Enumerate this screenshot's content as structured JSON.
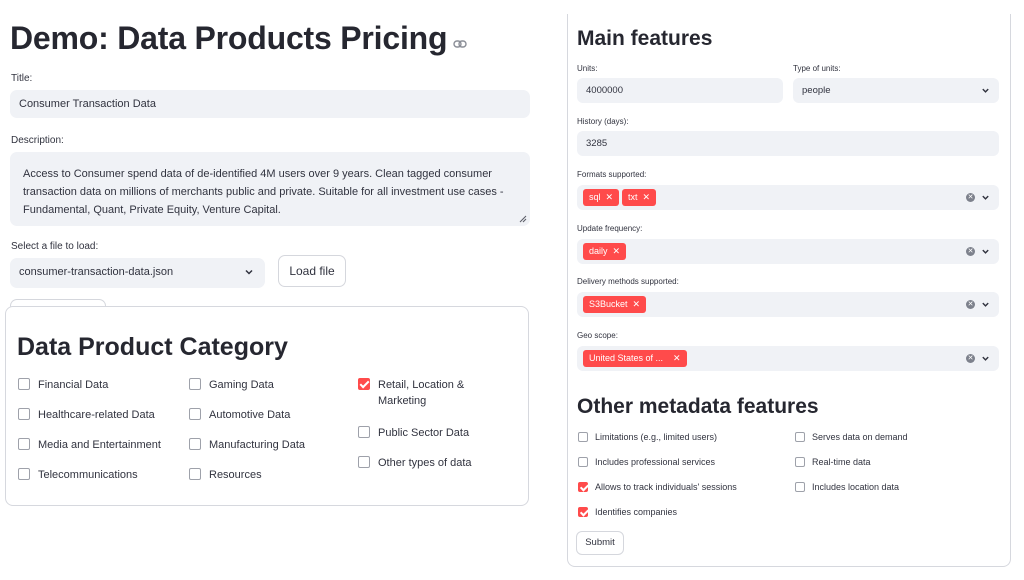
{
  "header": {
    "title": "Demo: Data Products Pricing",
    "link_icon": "link-icon"
  },
  "form": {
    "title_label": "Title:",
    "title_value": "Consumer Transaction Data",
    "description_label": "Description:",
    "description_value": "Access to Consumer spend data of de-identified 4M users over 9 years. Clean tagged consumer transaction data on millions of merchants public and private.  Suitable for all investment use cases - Fundamental, Quant, Private Equity, Venture Capital.",
    "file_label": "Select a file to load:",
    "file_value": "consumer-transaction-data.json",
    "load_button": "Load file"
  },
  "category": {
    "title": "Data Product Category",
    "items": [
      {
        "label": "Financial Data",
        "checked": false
      },
      {
        "label": "Gaming Data",
        "checked": false
      },
      {
        "label": "Retail, Location &",
        "label2": "Marketing",
        "checked": true
      },
      {
        "label": "Healthcare-related Data",
        "checked": false
      },
      {
        "label": "Automotive Data",
        "checked": false
      },
      {
        "label": "Public Sector Data",
        "checked": false
      },
      {
        "label": "Media and Entertainment",
        "checked": false
      },
      {
        "label": "Manufacturing Data",
        "checked": false
      },
      {
        "label": "Other types of data",
        "checked": false
      },
      {
        "label": "Telecommunications",
        "checked": false
      },
      {
        "label": "Resources",
        "checked": false
      }
    ]
  },
  "main_features": {
    "title": "Main features",
    "units_label": "Units:",
    "units_value": "4000000",
    "type_units_label": "Type of units:",
    "type_units_value": "people",
    "history_label": "History (days):",
    "history_value": "3285",
    "formats_label": "Formats supported:",
    "formats": [
      "sql",
      "txt"
    ],
    "update_label": "Update frequency:",
    "update": [
      "daily"
    ],
    "delivery_label": "Delivery methods supported:",
    "delivery": [
      "S3Bucket"
    ],
    "geo_label": "Geo scope:",
    "geo": [
      "United States of ..."
    ]
  },
  "other_metadata": {
    "title": "Other metadata features",
    "items": [
      {
        "label": "Limitations (e.g., limited users)",
        "checked": false
      },
      {
        "label": "Serves data on demand",
        "checked": false
      },
      {
        "label": "Includes professional services",
        "checked": false
      },
      {
        "label": "Real-time data",
        "checked": false
      },
      {
        "label": "Allows to track individuals' sessions",
        "checked": true
      },
      {
        "label": "Includes location data",
        "checked": false
      },
      {
        "label": "Identifies companies",
        "checked": true
      }
    ],
    "submit_label": "Submit"
  },
  "colors": {
    "accent": "#ff4b4b",
    "field_bg": "#f0f2f6",
    "text": "#31333f"
  },
  "icons": [
    "link-icon",
    "chevron-down-icon",
    "clear-icon",
    "resize-icon",
    "tag-remove-icon"
  ]
}
